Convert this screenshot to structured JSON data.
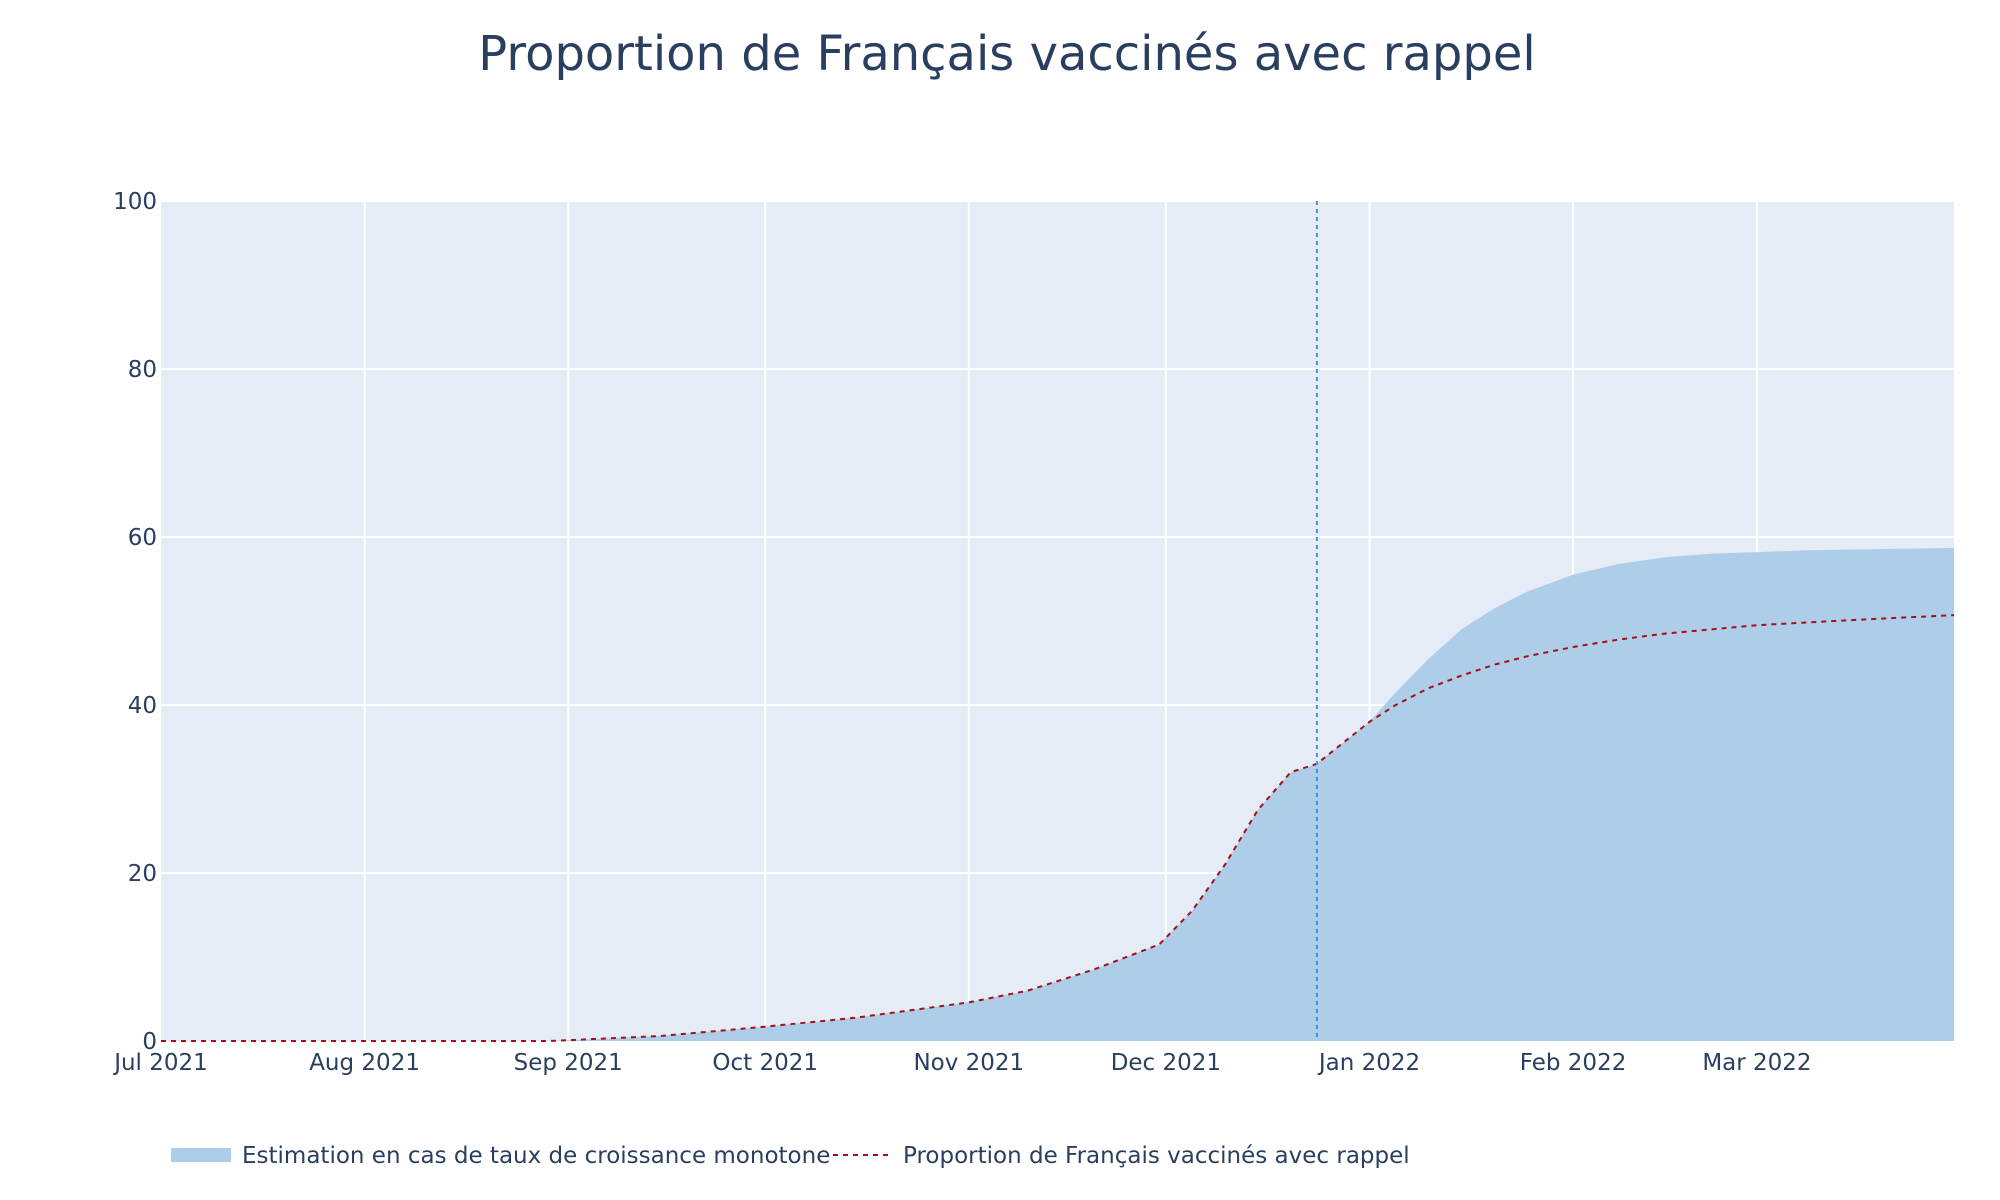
{
  "chart_data": {
    "type": "area",
    "title": "Proportion de Français vaccinés avec rappel",
    "xlabel": "",
    "ylabel": "",
    "xlim": [
      "2021-07-01",
      "2022-03-31"
    ],
    "ylim": [
      0,
      100
    ],
    "y_ticks": [
      0,
      20,
      40,
      60,
      80,
      100
    ],
    "x_ticks": [
      {
        "date": "2021-07-01",
        "label": "Jul 2021"
      },
      {
        "date": "2021-08-01",
        "label": "Aug 2021"
      },
      {
        "date": "2021-09-01",
        "label": "Sep 2021"
      },
      {
        "date": "2021-10-01",
        "label": "Oct 2021"
      },
      {
        "date": "2021-11-01",
        "label": "Nov 2021"
      },
      {
        "date": "2021-12-01",
        "label": "Dec 2021"
      },
      {
        "date": "2022-01-01",
        "label": "Jan 2022"
      },
      {
        "date": "2022-02-01",
        "label": "Feb 2022"
      },
      {
        "date": "2022-03-01",
        "label": "Mar 2022"
      }
    ],
    "grid": true,
    "legend_position": "bottom-left",
    "vertical_line": {
      "date": "2021-12-24",
      "color": "#4a90e2",
      "style": "dotted"
    },
    "series": [
      {
        "name": "Estimation en cas de taux de croissance monotone",
        "kind": "area",
        "color": "#aecde8",
        "x": [
          "2021-07-01",
          "2021-08-01",
          "2021-08-29",
          "2021-09-01",
          "2021-09-15",
          "2021-10-01",
          "2021-10-15",
          "2021-11-01",
          "2021-11-10",
          "2021-11-20",
          "2021-11-30",
          "2021-12-05",
          "2021-12-10",
          "2021-12-15",
          "2021-12-20",
          "2021-12-24",
          "2021-12-28",
          "2022-01-01",
          "2022-01-05",
          "2022-01-10",
          "2022-01-15",
          "2022-01-20",
          "2022-01-25",
          "2022-02-01",
          "2022-02-08",
          "2022-02-15",
          "2022-02-22",
          "2022-03-01",
          "2022-03-08",
          "2022-03-15",
          "2022-03-31"
        ],
        "y": [
          0,
          0,
          0,
          0.1,
          0.6,
          1.7,
          2.8,
          4.6,
          6.0,
          8.5,
          11.5,
          15.5,
          21.0,
          27.5,
          32.0,
          33.0,
          35.5,
          38.0,
          41.5,
          45.5,
          49.0,
          51.5,
          53.5,
          55.5,
          56.8,
          57.6,
          58.0,
          58.2,
          58.4,
          58.5,
          58.7
        ]
      },
      {
        "name": "Proportion de Français vaccinés avec rappel",
        "kind": "line",
        "color": "#a50f15",
        "dash": "dotted",
        "x": [
          "2021-07-01",
          "2021-08-01",
          "2021-08-29",
          "2021-09-01",
          "2021-09-15",
          "2021-10-01",
          "2021-10-15",
          "2021-11-01",
          "2021-11-10",
          "2021-11-20",
          "2021-11-30",
          "2021-12-05",
          "2021-12-10",
          "2021-12-15",
          "2021-12-20",
          "2021-12-24",
          "2021-12-28",
          "2022-01-01",
          "2022-01-05",
          "2022-01-10",
          "2022-01-15",
          "2022-01-20",
          "2022-01-25",
          "2022-02-01",
          "2022-02-08",
          "2022-02-15",
          "2022-02-22",
          "2022-03-01",
          "2022-03-08",
          "2022-03-15",
          "2022-03-31"
        ],
        "y": [
          0,
          0,
          0,
          0.1,
          0.6,
          1.7,
          2.8,
          4.6,
          6.0,
          8.5,
          11.5,
          15.5,
          21.0,
          27.5,
          32.0,
          33.0,
          35.5,
          38.0,
          40.0,
          42.0,
          43.5,
          44.8,
          45.8,
          46.9,
          47.8,
          48.5,
          49.0,
          49.5,
          49.8,
          50.1,
          50.7
        ]
      }
    ]
  }
}
